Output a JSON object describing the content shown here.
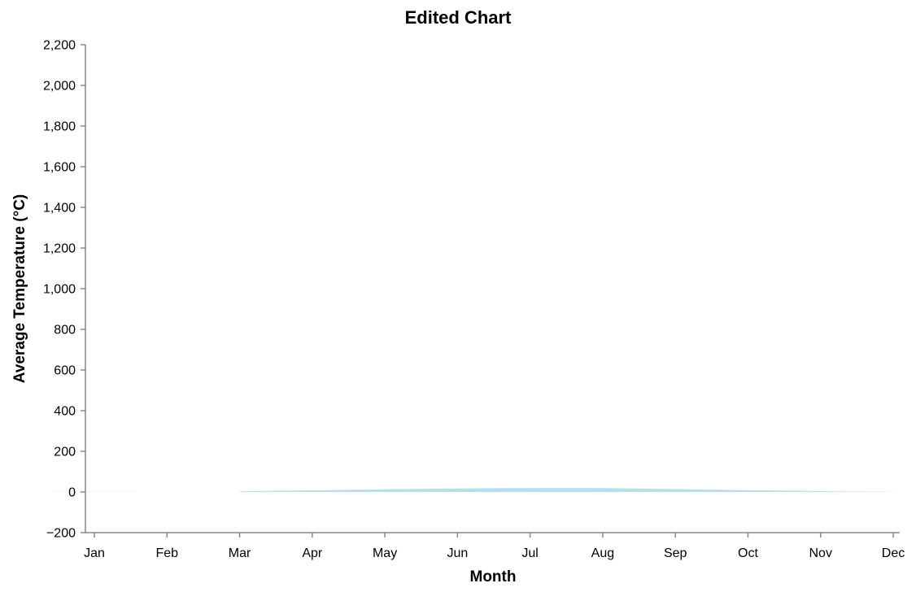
{
  "chart_data": {
    "type": "area",
    "title": "Edited Chart",
    "xlabel": "Month",
    "ylabel": "Average Temperature (°C)",
    "categories": [
      "Jan",
      "Feb",
      "Mar",
      "Apr",
      "May",
      "Jun",
      "Jul",
      "Aug",
      "Sep",
      "Oct",
      "Nov",
      "Dec"
    ],
    "series": [
      {
        "values": [
          1,
          null,
          3,
          8,
          13,
          17,
          19,
          19,
          14,
          9,
          4,
          1
        ]
      }
    ],
    "y_ticks": [
      -200,
      0,
      200,
      400,
      600,
      800,
      1000,
      1200,
      1400,
      1600,
      1800,
      2000,
      2200
    ],
    "y_tick_labels": [
      "−200",
      "0",
      "200",
      "400",
      "600",
      "800",
      "1,000",
      "1,200",
      "1,400",
      "1,600",
      "1,800",
      "2,000",
      "2,200"
    ],
    "ylim": [
      -200,
      2200
    ],
    "grid": false,
    "legend": "none",
    "area_color": "#add8e6"
  }
}
